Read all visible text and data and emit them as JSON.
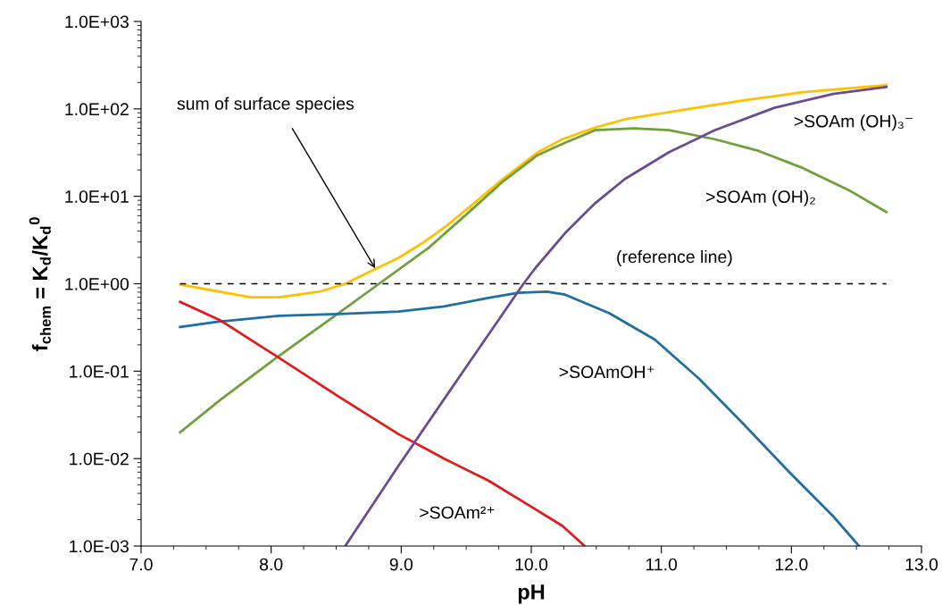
{
  "chart_data": {
    "type": "line",
    "xlabel": "pH",
    "ylabel": "f$_{chem}$ = K$_{d}$/K$_{d}$$^{0}$",
    "log": "y",
    "grid": false,
    "legend": false,
    "marker": "none",
    "line_style": "solid",
    "xlim": [
      7.0,
      13.0
    ],
    "xticks": [
      {
        "value": 7,
        "label": "7.0"
      },
      {
        "value": 8,
        "label": "8.0"
      },
      {
        "value": 9,
        "label": "9.0"
      },
      {
        "value": 10,
        "label": "10.0"
      },
      {
        "value": 11,
        "label": "11.0"
      },
      {
        "value": 12,
        "label": "12.0"
      },
      {
        "value": 13,
        "label": "13.0"
      }
    ],
    "ylim": [
      0.001,
      1000
    ],
    "yticks": [
      {
        "value": 0.001,
        "label": "1.0E-03"
      },
      {
        "value": 0.01,
        "label": "1.0E-02"
      },
      {
        "value": 0.1,
        "label": "1.0E-01"
      },
      {
        "value": 1,
        "label": "1.0E+00"
      },
      {
        "value": 10,
        "label": "1.0E+01"
      },
      {
        "value": 100,
        "label": "1.0E+02"
      },
      {
        "value": 1000,
        "label": "1.0E+03"
      }
    ],
    "series": [
      {
        "color": "#ffc000",
        "x": [
          7.3,
          7.84,
          8.06,
          8.37,
          8.57,
          8.78,
          8.98,
          9.16,
          9.35,
          9.55,
          9.78,
          10.05,
          10.24,
          10.49,
          10.72,
          11.18,
          11.63,
          12.09,
          12.73
        ],
        "values": [
          0.98,
          0.7,
          0.7,
          0.81,
          1.0,
          1.42,
          1.98,
          2.9,
          4.6,
          8.1,
          15.7,
          31.9,
          45,
          61,
          76,
          98,
          125,
          155,
          187
        ]
      },
      {
        "color": "#70a03c",
        "x": [
          7.3,
          7.61,
          8.04,
          8.5,
          8.83,
          9.21,
          9.55,
          9.78,
          10.05,
          10.26,
          10.49,
          10.79,
          11.06,
          11.41,
          11.75,
          12.09,
          12.44,
          12.73
        ],
        "values": [
          0.02,
          0.047,
          0.142,
          0.44,
          1.0,
          2.57,
          7.2,
          14.7,
          29.7,
          41,
          57,
          60,
          57,
          45,
          33,
          21,
          11.8,
          6.6
        ]
      },
      {
        "color": "#1f6fa0",
        "x": [
          7.3,
          7.61,
          8.06,
          8.52,
          8.98,
          9.33,
          9.67,
          9.9,
          10.12,
          10.26,
          10.6,
          10.95,
          11.29,
          11.63,
          11.98,
          12.32,
          12.52
        ],
        "values": [
          0.32,
          0.37,
          0.43,
          0.45,
          0.48,
          0.55,
          0.69,
          0.79,
          0.81,
          0.75,
          0.46,
          0.23,
          0.082,
          0.025,
          0.0071,
          0.0022,
          0.001
        ]
      },
      {
        "color": "#e31a1c",
        "x": [
          7.3,
          7.61,
          8.06,
          8.52,
          8.98,
          9.33,
          9.67,
          9.97,
          10.24,
          10.41
        ],
        "values": [
          0.62,
          0.38,
          0.142,
          0.051,
          0.019,
          0.01,
          0.0056,
          0.003,
          0.0017,
          0.001
        ]
      },
      {
        "color": "#6a4c93",
        "x": [
          8.57,
          8.98,
          9.44,
          9.94,
          10.03,
          10.26,
          10.49,
          10.72,
          11.06,
          11.41,
          11.87,
          12.32,
          12.73
        ],
        "values": [
          0.001,
          0.0083,
          0.083,
          1.0,
          1.5,
          3.8,
          8.3,
          15.8,
          32,
          57,
          103,
          148,
          178
        ]
      }
    ],
    "ref_lines": [
      {
        "axis": "y",
        "value": 1,
        "label": "(reference line)",
        "color": "#000000",
        "line_style": "dashed"
      }
    ],
    "annotations": [
      {
        "text": "sum of surface species",
        "x": 8.8,
        "y": 1.5
      },
      ">SOAm (OH)₃⁻",
      ">SOAm (OH)₂",
      ">SOAmOH⁺",
      ">SOAm²⁺"
    ]
  }
}
